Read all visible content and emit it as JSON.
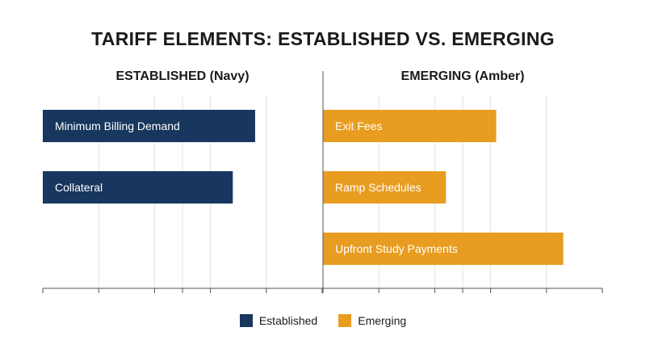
{
  "chart_data": {
    "type": "bar",
    "title": "TARIFF ELEMENTS: ESTABLISHED VS. EMERGING",
    "panels": [
      {
        "title": "ESTABLISHED (Navy)",
        "series": "Established",
        "color": "#17375e",
        "categories": [
          "Minimum Billing Demand",
          "Collateral"
        ],
        "values": [
          76,
          68
        ]
      },
      {
        "title": "EMERGING (Amber)",
        "series": "Emerging",
        "color": "#e89d20",
        "categories": [
          "Exit Fees",
          "Ramp Schedules",
          "Upfront Study Payments"
        ],
        "values": [
          62,
          44,
          86
        ]
      }
    ],
    "legend": [
      {
        "name": "Established",
        "color": "#17375e"
      },
      {
        "name": "Emerging",
        "color": "#e89d20"
      }
    ],
    "xlim": [
      0,
      100
    ],
    "grid": true,
    "legend_position": "bottom"
  }
}
